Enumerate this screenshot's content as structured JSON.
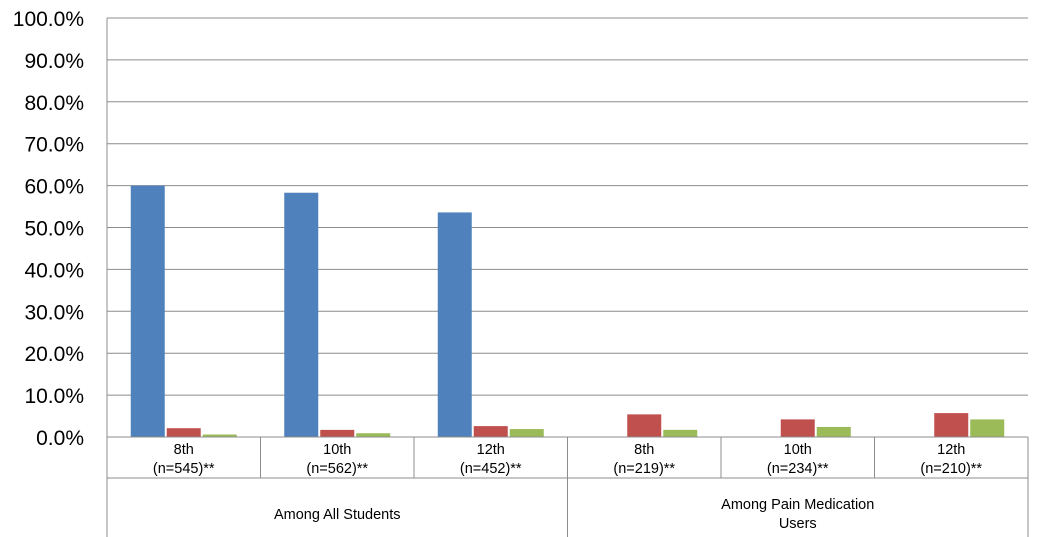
{
  "chart_data": {
    "type": "bar",
    "title": "",
    "xlabel": "",
    "ylabel": "",
    "ylim": [
      0,
      100
    ],
    "y_ticks": [
      "0.0%",
      "10.0%",
      "20.0%",
      "30.0%",
      "40.0%",
      "50.0%",
      "60.0%",
      "70.0%",
      "80.0%",
      "90.0%",
      "100.0%"
    ],
    "grid": true,
    "legend": "none",
    "categories": [
      [
        "8th",
        "(n=545)**"
      ],
      [
        "10th",
        "(n=562)**"
      ],
      [
        "12th",
        "(n=452)**"
      ],
      [
        "8th",
        "(n=219)**"
      ],
      [
        "10th",
        "(n=234)**"
      ],
      [
        "12th",
        "(n=210)**"
      ]
    ],
    "groups": [
      {
        "label": [
          "Among All Students"
        ],
        "span": [
          0,
          2
        ]
      },
      {
        "label": [
          "Among Pain Medication",
          "Users"
        ],
        "span": [
          3,
          5
        ]
      }
    ],
    "series": [
      {
        "values": [
          60.0,
          58.3,
          53.6,
          0,
          0,
          0
        ],
        "color": "#4F81BD"
      },
      {
        "values": [
          2.1,
          1.7,
          2.6,
          5.4,
          4.2,
          5.7
        ],
        "color": "#C0504D"
      },
      {
        "values": [
          0.6,
          0.9,
          1.9,
          1.7,
          2.4,
          4.2
        ],
        "color": "#9BBB59"
      }
    ]
  }
}
